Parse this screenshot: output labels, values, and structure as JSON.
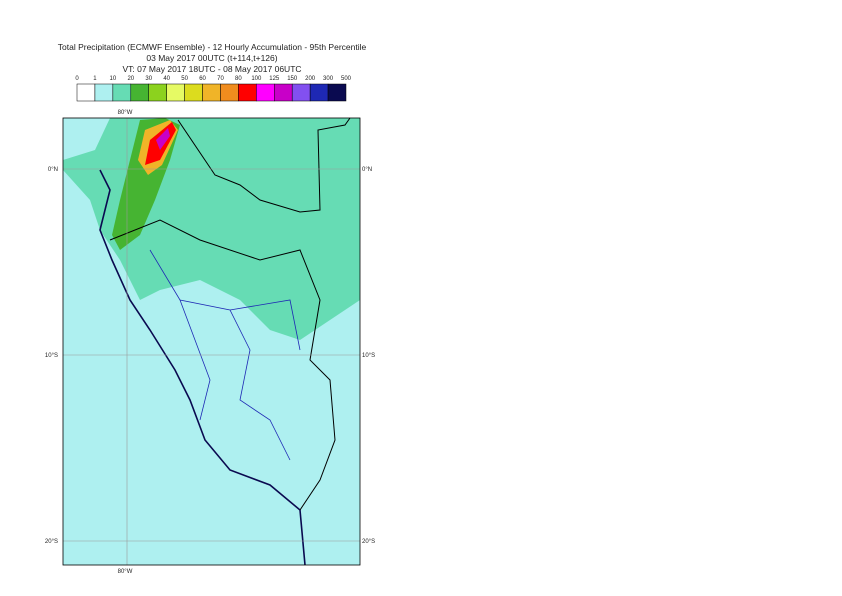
{
  "header": {
    "title": "Total Precipitation (ECMWF Ensemble) - 12 Hourly Accumulation - 95th Percentile",
    "run": "03 May 2017 00UTC (t+114,t+126)",
    "valid": "VT: 07 May 2017 18UTC - 08 May 2017 06UTC"
  },
  "legend": {
    "ticks": [
      0,
      1,
      10,
      20,
      30,
      40,
      50,
      60,
      70,
      80,
      100,
      125,
      150,
      200,
      300,
      500
    ],
    "colors": [
      "#ffffff",
      "#aef0f0",
      "#66dcb4",
      "#46b432",
      "#8cd21e",
      "#e6fa64",
      "#dcdc1e",
      "#f0b428",
      "#f08c1e",
      "#ff0000",
      "#ff00ff",
      "#c800c8",
      "#8250f0",
      "#1e28b4",
      "#0a0a50"
    ]
  },
  "map": {
    "lon_label": "80°W",
    "lat_labels": [
      "0°N",
      "10°S",
      "20°S"
    ]
  }
}
